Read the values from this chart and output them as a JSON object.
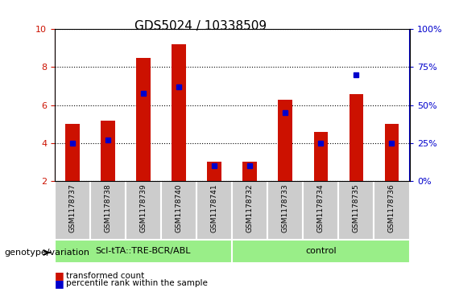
{
  "title": "GDS5024 / 10338509",
  "samples": [
    "GSM1178737",
    "GSM1178738",
    "GSM1178739",
    "GSM1178740",
    "GSM1178741",
    "GSM1178732",
    "GSM1178733",
    "GSM1178734",
    "GSM1178735",
    "GSM1178736"
  ],
  "transformed_counts": [
    5.0,
    5.2,
    8.5,
    9.2,
    3.0,
    3.0,
    6.3,
    4.6,
    6.6,
    5.0
  ],
  "percentile_ranks": [
    25,
    27,
    58,
    62,
    10,
    10,
    45,
    25,
    70,
    25
  ],
  "ylim_left": [
    2,
    10
  ],
  "ylim_right": [
    0,
    100
  ],
  "yticks_left": [
    2,
    4,
    6,
    8,
    10
  ],
  "yticks_right": [
    0,
    25,
    50,
    75,
    100
  ],
  "bar_color": "#cc1100",
  "dot_color": "#0000cc",
  "grid_color": "#000000",
  "bg_color": "#ffffff",
  "plot_bg": "#ffffff",
  "group1_label": "Scl-tTA::TRE-BCR/ABL",
  "group2_label": "control",
  "group1_indices": [
    0,
    1,
    2,
    3,
    4
  ],
  "group2_indices": [
    5,
    6,
    7,
    8,
    9
  ],
  "group_bg": "#99ee88",
  "sample_bg": "#cccccc",
  "genotype_label": "genotype/variation",
  "legend_items": [
    {
      "label": "transformed count",
      "color": "#cc1100",
      "marker": "s"
    },
    {
      "label": "percentile rank within the sample",
      "color": "#0000cc",
      "marker": "s"
    }
  ],
  "bar_width": 0.4,
  "left_axis_color": "#cc1100",
  "right_axis_color": "#0000cc"
}
